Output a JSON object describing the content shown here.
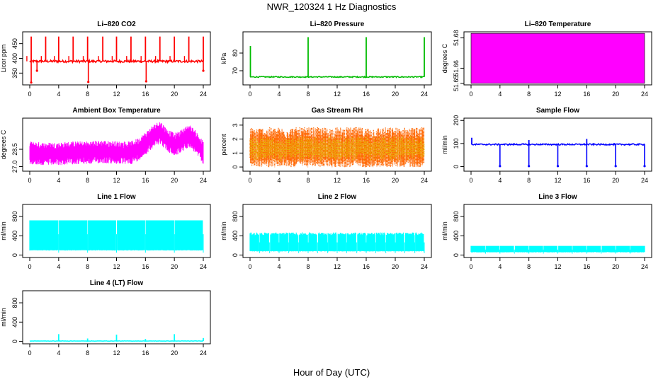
{
  "figure": {
    "title": "NWR_120324  1 Hz Diagnostics",
    "xlabel": "Hour of Day (UTC)"
  },
  "chart_data": [
    {
      "type": "line",
      "id": "co2",
      "title": "Li–820 CO2",
      "ylabel": "Licor ppm",
      "color": "#ff0000",
      "xlim": [
        0,
        24
      ],
      "ylim": [
        310,
        490
      ],
      "xticks": [
        "0",
        "4",
        "8",
        "12",
        "16",
        "20",
        "24"
      ],
      "yticks": [
        "350",
        "400",
        "450"
      ],
      "baseline": 390,
      "noise": 4,
      "x": [
        0.2,
        2.2,
        4.0,
        6.0,
        8.0,
        10.1,
        12.0,
        14.0,
        16.0,
        18.0,
        20.0,
        22.0,
        24.0
      ],
      "y": [
        474,
        474,
        474,
        474,
        474,
        474,
        474,
        474,
        474,
        474,
        474,
        474,
        474
      ],
      "dip_x": [
        0.2,
        1.0,
        8.1,
        16.1,
        24.0
      ],
      "dip_y": [
        318,
        358,
        320,
        322,
        358
      ]
    },
    {
      "type": "line",
      "id": "pressure",
      "title": "Li–820 Pressure",
      "ylabel": "kPa",
      "color": "#00bb00",
      "xlim": [
        0,
        24
      ],
      "ylim": [
        62,
        92
      ],
      "xticks": [
        "0",
        "4",
        "8",
        "12",
        "16",
        "20",
        "24"
      ],
      "yticks": [
        "70",
        "80"
      ],
      "baseline": 66.5,
      "noise": 0.3,
      "x": [
        0.05,
        8.0,
        16.0,
        24.0
      ],
      "y": [
        84,
        89,
        89,
        89
      ]
    },
    {
      "type": "area",
      "id": "licor-temp",
      "title": "Li–820 Temperature",
      "ylabel": "degrees C",
      "color": "#ff00ff",
      "xlim": [
        0,
        24
      ],
      "ylim": [
        51.649,
        51.684
      ],
      "xticks": [
        "0",
        "4",
        "8",
        "12",
        "16",
        "20",
        "24"
      ],
      "yticks": [
        "51.65",
        "51.66",
        "51.68"
      ],
      "fill_min": 51.65,
      "fill_max": 51.683
    },
    {
      "type": "line",
      "id": "ambient-temp",
      "title": "Ambient Box Temperature",
      "ylabel": "degrees C",
      "color": "#ff00ff",
      "xlim": [
        0,
        24
      ],
      "ylim": [
        26.6,
        31.2
      ],
      "xticks": [
        "0",
        "4",
        "8",
        "12",
        "16",
        "20",
        "24"
      ],
      "yticks": [
        "27.0",
        "28.5"
      ],
      "x": [
        0,
        2,
        4,
        6,
        8,
        10,
        12,
        14,
        15,
        16,
        17,
        18,
        19,
        20,
        21,
        22,
        23,
        24
      ],
      "y": [
        28.2,
        28.1,
        28.1,
        28.2,
        28.2,
        28.3,
        28.2,
        28.2,
        28.5,
        29.0,
        29.6,
        30.0,
        29.3,
        28.9,
        29.2,
        29.7,
        29.1,
        28.2
      ],
      "noise": 1.0
    },
    {
      "type": "scatter",
      "id": "rh",
      "title": "Gas Stream RH",
      "ylabel": "percent",
      "color": "#ff6600",
      "color2": "#ddcc00",
      "xlim": [
        0,
        24
      ],
      "ylim": [
        -0.3,
        3.5
      ],
      "xticks": [
        "0",
        "4",
        "8",
        "12",
        "16",
        "20",
        "24"
      ],
      "yticks": [
        "0",
        "1",
        "2",
        "3"
      ],
      "center": 1.3,
      "spread": 1.1
    },
    {
      "type": "line",
      "id": "sample-flow",
      "title": "Sample Flow",
      "ylabel": "ml/min",
      "color": "#0000ff",
      "xlim": [
        0,
        24
      ],
      "ylim": [
        -20,
        210
      ],
      "xticks": [
        "0",
        "4",
        "8",
        "12",
        "16",
        "20",
        "24"
      ],
      "yticks": [
        "0",
        "100",
        "200"
      ],
      "baseline": 96,
      "noise": 3,
      "dip_x": [
        4.0,
        8.0,
        12.0,
        16.0,
        20.0,
        24.0
      ],
      "dip_y": [
        2,
        2,
        2,
        2,
        2,
        2
      ],
      "x": [
        0.1,
        8.0,
        16.0
      ],
      "y": [
        125,
        115,
        120
      ]
    },
    {
      "type": "area",
      "id": "line1",
      "title": "Line 1 Flow",
      "ylabel": "ml/min",
      "color": "#00ffff",
      "xlim": [
        0,
        24
      ],
      "ylim": [
        -50,
        1050
      ],
      "xticks": [
        "0",
        "4",
        "8",
        "12",
        "16",
        "20",
        "24"
      ],
      "yticks": [
        "0",
        "400",
        "800"
      ],
      "fill_min": 100,
      "fill_max": 720,
      "gaps": [
        4.0,
        8.0,
        12.0,
        16.0,
        20.0,
        24.0
      ]
    },
    {
      "type": "area",
      "id": "line2",
      "title": "Line 2 Flow",
      "ylabel": "ml/min",
      "color": "#00ffff",
      "xlim": [
        0,
        24
      ],
      "ylim": [
        -50,
        1050
      ],
      "xticks": [
        "0",
        "4",
        "8",
        "12",
        "16",
        "20",
        "24"
      ],
      "yticks": [
        "0",
        "400",
        "800"
      ],
      "fill_min": 80,
      "fill_max": 440,
      "jitter": 30,
      "gaps": [
        1.3,
        2.7,
        4.0,
        5.3,
        6.7,
        8.0,
        9.3,
        10.7,
        12.0,
        13.3,
        14.7,
        16.0,
        17.3,
        18.7,
        20.0,
        21.3,
        22.7,
        24.0
      ]
    },
    {
      "type": "area",
      "id": "line3",
      "title": "Line 3 Flow",
      "ylabel": "ml/min",
      "color": "#00ffff",
      "xlim": [
        0,
        24
      ],
      "ylim": [
        -50,
        1050
      ],
      "xticks": [
        "0",
        "4",
        "8",
        "12",
        "16",
        "20",
        "24"
      ],
      "yticks": [
        "0",
        "400",
        "800"
      ],
      "fill_min": 60,
      "fill_max": 190,
      "gaps": [
        2.0,
        4.0,
        6.0,
        8.0,
        10.0,
        12.0,
        14.0,
        16.0,
        18.0,
        20.0,
        22.0
      ]
    },
    {
      "type": "line",
      "id": "line4",
      "title": "Line 4 (LT) Flow",
      "ylabel": "ml/min",
      "color": "#00ffff",
      "xlim": [
        0,
        24
      ],
      "ylim": [
        -50,
        1050
      ],
      "xticks": [
        "0",
        "4",
        "8",
        "12",
        "16",
        "20",
        "24"
      ],
      "yticks": [
        "0",
        "400",
        "800"
      ],
      "baseline": 8,
      "noise": 3,
      "x": [
        4.0,
        8.0,
        12.0,
        16.0,
        20.0,
        24.0
      ],
      "y": [
        150,
        60,
        140,
        50,
        150,
        70
      ]
    }
  ]
}
